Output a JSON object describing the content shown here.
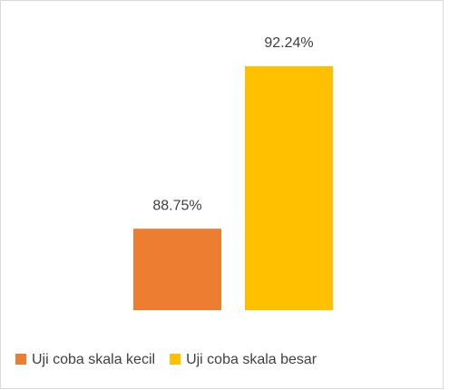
{
  "chart_data": {
    "type": "bar",
    "series": [
      {
        "name": "Uji coba skala kecil",
        "color": "#ED7D31",
        "values": [
          88.75
        ],
        "value_labels": [
          "88.75%"
        ]
      },
      {
        "name": "Uji coba skala besar",
        "color": "#FFC000",
        "values": [
          92.24
        ],
        "value_labels": [
          "92.24%"
        ]
      }
    ],
    "ylim": [
      87,
      93
    ],
    "legend": "bottom"
  }
}
